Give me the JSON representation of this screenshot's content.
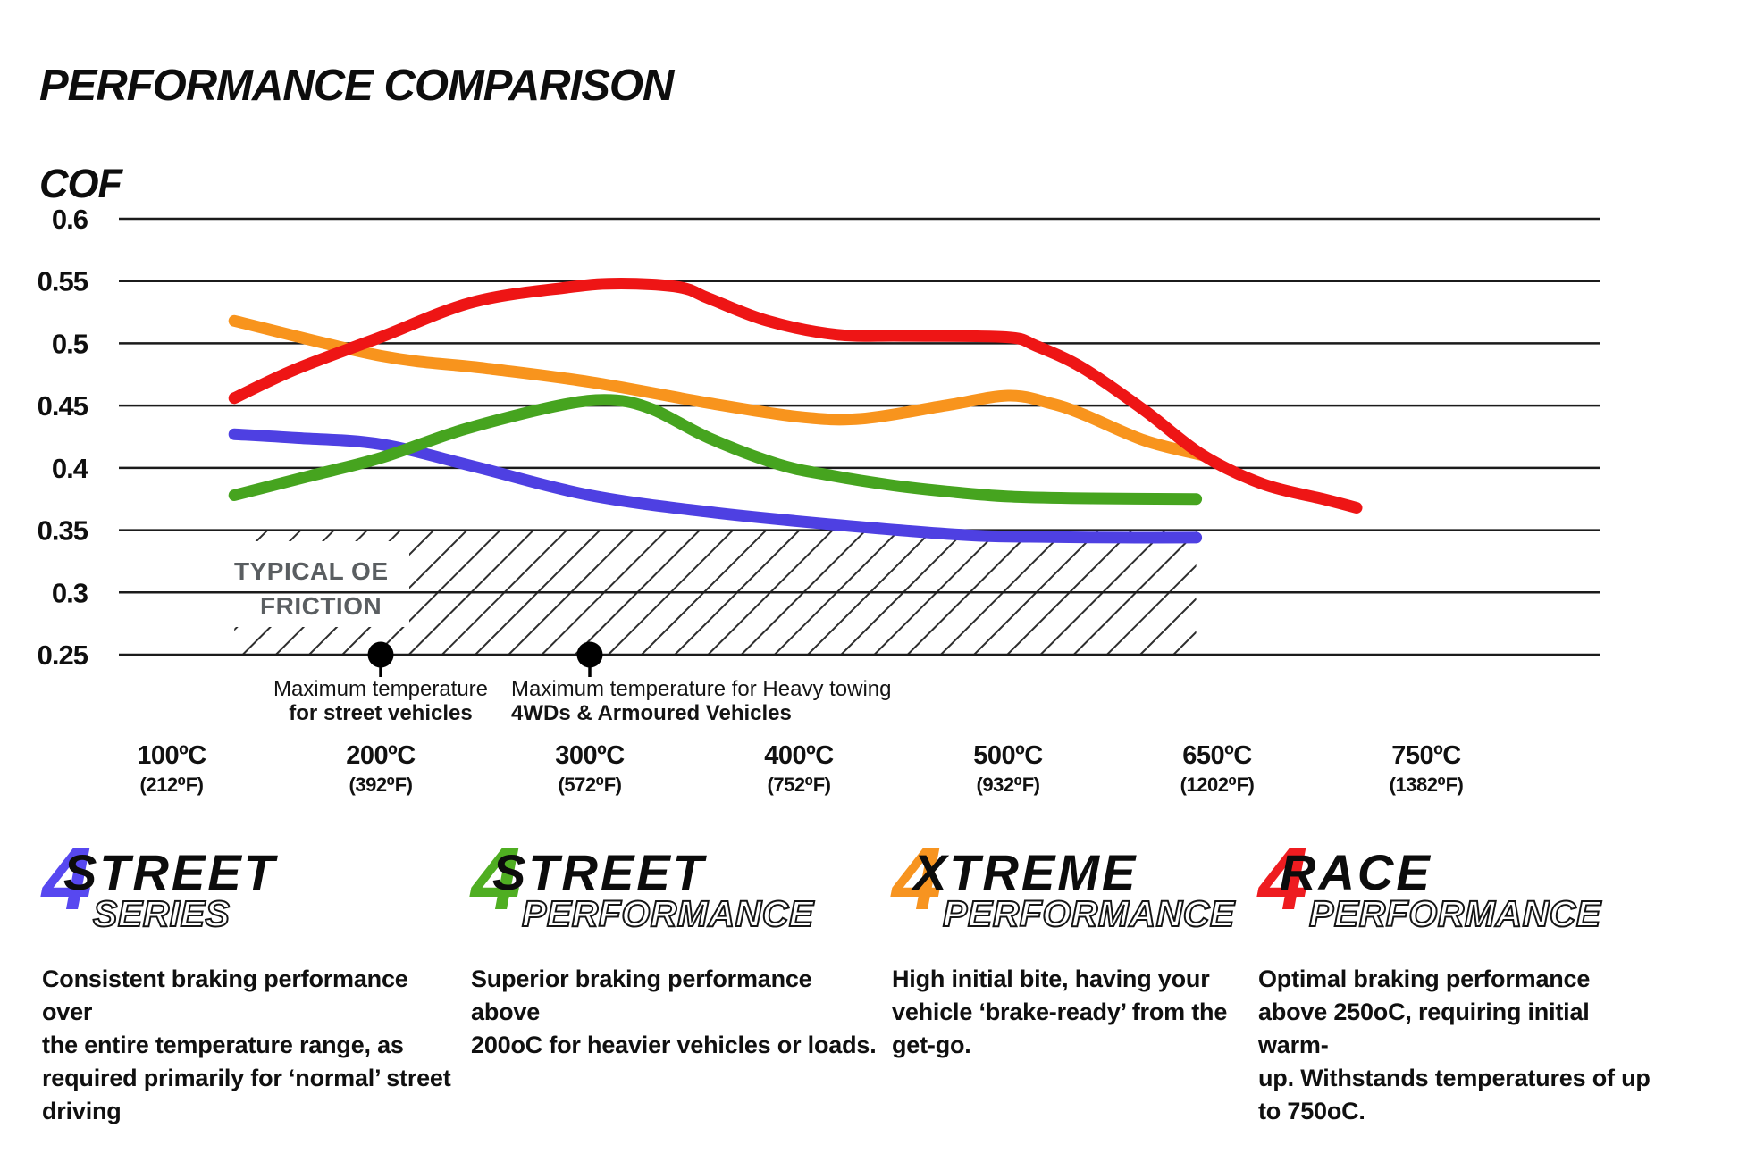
{
  "title": "PERFORMANCE COMPARISON",
  "chart_data": {
    "type": "line",
    "title": "PERFORMANCE COMPARISON",
    "ylabel": "COF",
    "x_axis": {
      "unit": "°C",
      "ticks": [
        100,
        200,
        300,
        400,
        500,
        650,
        750
      ],
      "tick_labels_c": [
        "100ºC",
        "200ºC",
        "300ºC",
        "400ºC",
        "500ºC",
        "650ºC",
        "750ºC"
      ],
      "tick_labels_f": [
        "(212⁰F)",
        "(392⁰F)",
        "(572⁰F)",
        "(752⁰F)",
        "(932⁰F)",
        "(1202⁰F)",
        "(1382⁰F)"
      ]
    },
    "y_axis": {
      "label": "COF",
      "min": 0.25,
      "max": 0.6,
      "ticks": [
        0.6,
        0.55,
        0.5,
        0.45,
        0.4,
        0.35,
        0.3,
        0.25
      ],
      "tick_labels": [
        "0.6",
        "0.55",
        "0.5",
        "0.45",
        "0.4",
        "0.35",
        "0.3",
        "0.25"
      ]
    },
    "grid": true,
    "legend_position": "bottom",
    "series": [
      {
        "name": "Street Series",
        "color": "#4e40e2",
        "points": [
          [
            130,
            0.427
          ],
          [
            160,
            0.424
          ],
          [
            200,
            0.419
          ],
          [
            245,
            0.401
          ],
          [
            300,
            0.378
          ],
          [
            360,
            0.364
          ],
          [
            420,
            0.354
          ],
          [
            480,
            0.346
          ],
          [
            530,
            0.3445
          ],
          [
            580,
            0.344
          ],
          [
            635,
            0.344
          ]
        ]
      },
      {
        "name": "Street Performance",
        "color": "#46a41f",
        "points": [
          [
            130,
            0.378
          ],
          [
            165,
            0.393
          ],
          [
            200,
            0.408
          ],
          [
            240,
            0.431
          ],
          [
            285,
            0.45
          ],
          [
            310,
            0.4545
          ],
          [
            330,
            0.447
          ],
          [
            357,
            0.424
          ],
          [
            390,
            0.403
          ],
          [
            415,
            0.394
          ],
          [
            445,
            0.386
          ],
          [
            471,
            0.381
          ],
          [
            500,
            0.377
          ],
          [
            560,
            0.3755
          ],
          [
            635,
            0.375
          ]
        ]
      },
      {
        "name": "Xtreme Performance",
        "color": "#f8941d",
        "points": [
          [
            130,
            0.518
          ],
          [
            200,
            0.49
          ],
          [
            250,
            0.48
          ],
          [
            300,
            0.469
          ],
          [
            357,
            0.452
          ],
          [
            400,
            0.441
          ],
          [
            430,
            0.4395
          ],
          [
            470,
            0.45
          ],
          [
            500,
            0.458
          ],
          [
            530,
            0.452
          ],
          [
            554,
            0.443
          ],
          [
            598,
            0.422
          ],
          [
            640,
            0.41
          ]
        ]
      },
      {
        "name": "Race Performance",
        "color": "#ee1515",
        "points": [
          [
            130,
            0.456
          ],
          [
            159,
            0.479
          ],
          [
            200,
            0.505
          ],
          [
            244,
            0.533
          ],
          [
            290,
            0.545
          ],
          [
            315,
            0.548
          ],
          [
            343,
            0.545
          ],
          [
            357,
            0.536
          ],
          [
            385,
            0.518
          ],
          [
            418,
            0.507
          ],
          [
            450,
            0.506
          ],
          [
            499,
            0.505
          ],
          [
            520,
            0.498
          ],
          [
            554,
            0.48
          ],
          [
            598,
            0.446
          ],
          [
            640,
            0.41
          ],
          [
            683,
            0.387
          ],
          [
            726,
            0.375
          ],
          [
            750,
            0.368
          ]
        ]
      }
    ],
    "oe_band": {
      "label_line1": "TYPICAL OE",
      "label_line2": "FRICTION",
      "cof_min": 0.25,
      "cof_max": 0.35,
      "t_min": 130,
      "t_max": 635
    },
    "markers": [
      {
        "t": 200,
        "cof": 0.25,
        "line1": "Maximum temperature",
        "line2": "for street vehicles"
      },
      {
        "t": 300,
        "cof": 0.25,
        "line1": "Maximum temperature for Heavy towing",
        "line2": "4WDs & Armoured Vehicles"
      }
    ]
  },
  "legend": [
    {
      "logo_glyph": "4",
      "name_top": "STREET",
      "name_bottom": "SERIES",
      "color": "#5748f0",
      "description": "Consistent braking performance over\nthe entire temperature range, as\nrequired primarily for ‘normal’ street\ndriving"
    },
    {
      "logo_glyph": "4",
      "name_top": "STREET",
      "name_bottom": "PERFORMANCE",
      "color": "#4fae22",
      "description": "Superior braking performance above\n200oC for heavier vehicles or loads."
    },
    {
      "logo_glyph": "4",
      "name_top": "XTREME",
      "name_bottom": "PERFORMANCE",
      "color": "#f79420",
      "description": "High initial bite, having your\nvehicle ‘brake-ready’ from the\nget-go."
    },
    {
      "logo_glyph": "4",
      "name_top": "RACE",
      "name_bottom": "PERFORMANCE",
      "color": "#ee1c20",
      "description": "Optimal braking performance\nabove 250oC, requiring initial warm-\nup. Withstands temperatures of up\nto 750oC."
    }
  ]
}
